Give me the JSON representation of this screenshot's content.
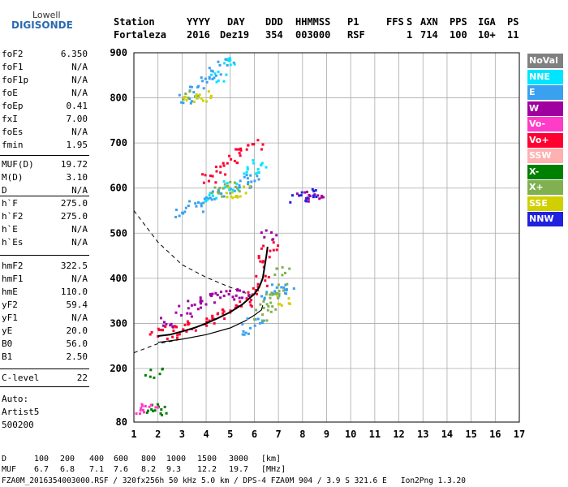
{
  "logo": {
    "line1": "Lowell",
    "line2": "DIGISONDE"
  },
  "header": {
    "labels": [
      "Station",
      "YYYY",
      "DAY",
      "DDD",
      "HHMMSS",
      "P1",
      "FFS",
      "S",
      "AXN",
      "PPS",
      "IGA",
      "PS"
    ],
    "values": [
      "Fortaleza",
      "2016",
      "Dez19",
      "354",
      "003000",
      "RSF",
      "",
      "1",
      "714",
      "100",
      "10+",
      "11"
    ]
  },
  "params": [
    {
      "name": "foF2",
      "value": "6.350"
    },
    {
      "name": "foF1",
      "value": "N/A"
    },
    {
      "name": "foF1p",
      "value": "N/A"
    },
    {
      "name": "foE",
      "value": "N/A"
    },
    {
      "name": "foEp",
      "value": "0.41"
    },
    {
      "name": "fxI",
      "value": "7.00"
    },
    {
      "name": "foEs",
      "value": "N/A"
    },
    {
      "name": "fmin",
      "value": "1.95"
    },
    {
      "name": "MUF(D)",
      "value": "19.72"
    },
    {
      "name": "M(D)",
      "value": "3.10"
    },
    {
      "name": "D",
      "value": "N/A"
    },
    {
      "name": "h`F",
      "value": "275.0"
    },
    {
      "name": "h`F2",
      "value": "275.0"
    },
    {
      "name": "h`E",
      "value": "N/A"
    },
    {
      "name": "h`Es",
      "value": "N/A"
    },
    {
      "name": "hmF2",
      "value": "322.5"
    },
    {
      "name": "hmF1",
      "value": "N/A"
    },
    {
      "name": "hmE",
      "value": "110.0"
    },
    {
      "name": "yF2",
      "value": "59.4"
    },
    {
      "name": "yF1",
      "value": "N/A"
    },
    {
      "name": "yE",
      "value": "20.0"
    },
    {
      "name": "B0",
      "value": "56.0"
    },
    {
      "name": "B1",
      "value": "2.50"
    },
    {
      "name": "C-level",
      "value": "22"
    }
  ],
  "autoscale": {
    "line1": "Auto:",
    "line2": "Artist5",
    "line3": "500200"
  },
  "legend": [
    {
      "label": "NoVal",
      "color": "#808080"
    },
    {
      "label": "NNE",
      "color": "#00e5ff"
    },
    {
      "label": "E",
      "color": "#3aa0f0"
    },
    {
      "label": "W",
      "color": "#a000a0"
    },
    {
      "label": "Vo-",
      "color": "#ff3cc8"
    },
    {
      "label": "Vo+",
      "color": "#ff0030"
    },
    {
      "label": "SSW",
      "color": "#ffb0b0"
    },
    {
      "label": "X-",
      "color": "#008000"
    },
    {
      "label": "X+",
      "color": "#80b050"
    },
    {
      "label": "SSE",
      "color": "#d0d000"
    },
    {
      "label": "NNW",
      "color": "#2020e0"
    }
  ],
  "footer": {
    "d_label": "D",
    "d_values": [
      "100",
      "200",
      "400",
      "600",
      "800",
      "1000",
      "1500",
      "3000"
    ],
    "d_unit": "[km]",
    "muf_label": "MUF",
    "muf_values": [
      "6.7",
      "6.8",
      "7.1",
      "7.6",
      "8.2",
      "9.3",
      "12.2",
      "19.7"
    ],
    "muf_unit": "[MHz]",
    "info": "FZA0M_2016354003000.RSF / 320fx256h 50 kHz 5.0 km / DPS-4 FZA0M 904 / 3.9 S 321.6 E   Ion2Png 1.3.20"
  },
  "chart_data": {
    "type": "scatter",
    "xlim": [
      1,
      17
    ],
    "ylim": [
      80,
      900
    ],
    "x_ticks": [
      1,
      2,
      3,
      4,
      5,
      6,
      7,
      8,
      9,
      10,
      11,
      12,
      13,
      14,
      15,
      16,
      17
    ],
    "y_ticks": [
      80,
      200,
      300,
      400,
      500,
      600,
      700,
      800,
      900
    ],
    "grid": true,
    "series": [
      {
        "name": "E",
        "color": "#3aa0f0",
        "points": [
          [
            3.0,
            548
          ],
          [
            3.5,
            562
          ],
          [
            4.0,
            575
          ],
          [
            4.5,
            588
          ],
          [
            5.0,
            600
          ],
          [
            5.5,
            615
          ],
          [
            6.0,
            628
          ],
          [
            3.2,
            800
          ],
          [
            3.6,
            815
          ],
          [
            4.0,
            835
          ],
          [
            4.4,
            858
          ],
          [
            4.8,
            885
          ],
          [
            5.5,
            290
          ],
          [
            6.0,
            310
          ],
          [
            6.6,
            360
          ],
          [
            7.0,
            380
          ],
          [
            7.3,
            370
          ]
        ]
      },
      {
        "name": "NNE",
        "color": "#00e5ff",
        "points": [
          [
            4.2,
            580
          ],
          [
            5.0,
            610
          ],
          [
            5.8,
            640
          ],
          [
            6.2,
            655
          ],
          [
            4.5,
            850
          ],
          [
            4.9,
            880
          ]
        ]
      },
      {
        "name": "Vo+",
        "color": "#ff0030",
        "points": [
          [
            2.0,
            278
          ],
          [
            2.5,
            283
          ],
          [
            3.0,
            290
          ],
          [
            3.5,
            298
          ],
          [
            4.0,
            307
          ],
          [
            4.5,
            318
          ],
          [
            5.0,
            332
          ],
          [
            5.5,
            348
          ],
          [
            6.0,
            370
          ],
          [
            6.3,
            395
          ],
          [
            6.5,
            440
          ],
          [
            6.6,
            470
          ],
          [
            4.0,
            625
          ],
          [
            4.5,
            645
          ],
          [
            5.0,
            665
          ],
          [
            5.5,
            680
          ],
          [
            6.0,
            700
          ]
        ]
      },
      {
        "name": "W",
        "color": "#a000a0",
        "points": [
          [
            2.4,
            305
          ],
          [
            3.0,
            330
          ],
          [
            3.5,
            345
          ],
          [
            4.0,
            355
          ],
          [
            4.5,
            360
          ],
          [
            5.0,
            365
          ],
          [
            5.5,
            370
          ],
          [
            6.6,
            500
          ],
          [
            8.0,
            585
          ],
          [
            8.5,
            580
          ]
        ]
      },
      {
        "name": "X+",
        "color": "#80b050",
        "points": [
          [
            6.3,
            320
          ],
          [
            6.5,
            340
          ],
          [
            6.8,
            360
          ],
          [
            7.0,
            380
          ],
          [
            7.1,
            420
          ],
          [
            4.5,
            595
          ],
          [
            5.0,
            605
          ],
          [
            3.3,
            810
          ]
        ]
      },
      {
        "name": "SSE",
        "color": "#d0d000",
        "points": [
          [
            5.0,
            592
          ],
          [
            5.4,
            595
          ],
          [
            3.4,
            798
          ],
          [
            3.8,
            805
          ],
          [
            7.2,
            352
          ]
        ]
      },
      {
        "name": "X-",
        "color": "#008000",
        "points": [
          [
            1.8,
            110
          ],
          [
            2.0,
            110
          ],
          [
            1.8,
            192
          ]
        ]
      },
      {
        "name": "NNW",
        "color": "#2020e0",
        "points": [
          [
            7.8,
            580
          ],
          [
            8.2,
            590
          ]
        ]
      },
      {
        "name": "Vo-",
        "color": "#ff3cc8",
        "points": [
          [
            1.3,
            110
          ],
          [
            1.6,
            110
          ]
        ]
      }
    ],
    "profile_solid": [
      [
        2.0,
        258
      ],
      [
        3.0,
        265
      ],
      [
        4.0,
        275
      ],
      [
        5.0,
        290
      ],
      [
        5.6,
        305
      ],
      [
        6.0,
        318
      ],
      [
        6.3,
        330
      ],
      [
        6.35,
        340
      ]
    ],
    "profile_dashed": [
      [
        1.0,
        235
      ],
      [
        2.0,
        255
      ],
      [
        3.0,
        265
      ]
    ],
    "profile_upper_dashed": [
      [
        1.0,
        550
      ],
      [
        2.0,
        480
      ],
      [
        3.0,
        430
      ],
      [
        4.0,
        402
      ],
      [
        5.0,
        380
      ],
      [
        6.0,
        360
      ]
    ],
    "trace": [
      [
        2.0,
        272
      ],
      [
        2.5,
        275
      ],
      [
        3.0,
        282
      ],
      [
        3.5,
        290
      ],
      [
        4.0,
        300
      ],
      [
        4.5,
        312
      ],
      [
        5.0,
        325
      ],
      [
        5.5,
        342
      ],
      [
        6.0,
        365
      ],
      [
        6.2,
        380
      ],
      [
        6.35,
        400
      ],
      [
        6.5,
        450
      ],
      [
        6.55,
        470
      ]
    ]
  }
}
